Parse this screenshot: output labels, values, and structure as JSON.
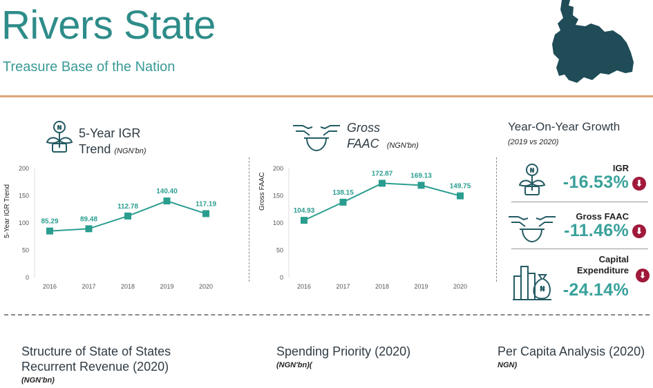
{
  "header": {
    "title": "Rivers State",
    "subtitle": "Treasure Base of the Nation",
    "colors": {
      "teal": "#2e8c89",
      "accent": "#e0a57a",
      "map": "#1f4c57"
    }
  },
  "igr_section": {
    "title_line1": "5-Year IGR",
    "title_line2": "Trend",
    "unit": "(NGN'bn)",
    "y_axis_title": "5-Year IGR Trend"
  },
  "faac_section": {
    "title_line1": "Gross",
    "title_line2": "FAAC",
    "unit": "(NGN'bn)",
    "y_axis_title": "Gross FAAC"
  },
  "chart_data": [
    {
      "type": "line",
      "name": "igr",
      "x": [
        "2016",
        "2017",
        "2018",
        "2019",
        "2020"
      ],
      "values": [
        85.29,
        89.48,
        112.78,
        140.4,
        117.19
      ],
      "labels": [
        "85.29",
        "89.48",
        "112.78",
        "140.40",
        "117.19"
      ],
      "ylim": [
        0,
        200
      ],
      "yticks": [
        "0",
        "50",
        "100",
        "150",
        "200"
      ],
      "ylabel": "5-Year IGR Trend",
      "color": "#2a9d8f"
    },
    {
      "type": "line",
      "name": "faac",
      "x": [
        "2016",
        "2017",
        "2018",
        "2019",
        "2020"
      ],
      "values": [
        104.93,
        138.15,
        172.87,
        169.13,
        149.75
      ],
      "labels": [
        "104.93",
        "138.15",
        "172.87",
        "169.13",
        "149.75"
      ],
      "ylim": [
        0,
        200
      ],
      "yticks": [
        "0",
        "50",
        "100",
        "150",
        "200"
      ],
      "ylabel": "Gross FAAC",
      "color": "#2a9d8f"
    }
  ],
  "yoy": {
    "title": "Year-On-Year Growth",
    "period": "(2019 vs 2020)",
    "items": [
      {
        "label": "IGR",
        "value": "-16.53%"
      },
      {
        "label": "Gross FAAC",
        "value": "-11.46%"
      },
      {
        "label_line1": "Capital",
        "label_line2": "Expenditure",
        "value": "-24.14%"
      }
    ]
  },
  "bottom": {
    "structure_title_line1": "Structure of State of States",
    "structure_title_line2": "Recurrent Revenue (2020)",
    "structure_unit": "(NGN'bn)",
    "spending_title": "Spending Priority (2020)",
    "spending_unit": "(NGN'bn)(",
    "percapita_title": "Per Capita Analysis (2020)",
    "percapita_unit": "NGN)"
  }
}
